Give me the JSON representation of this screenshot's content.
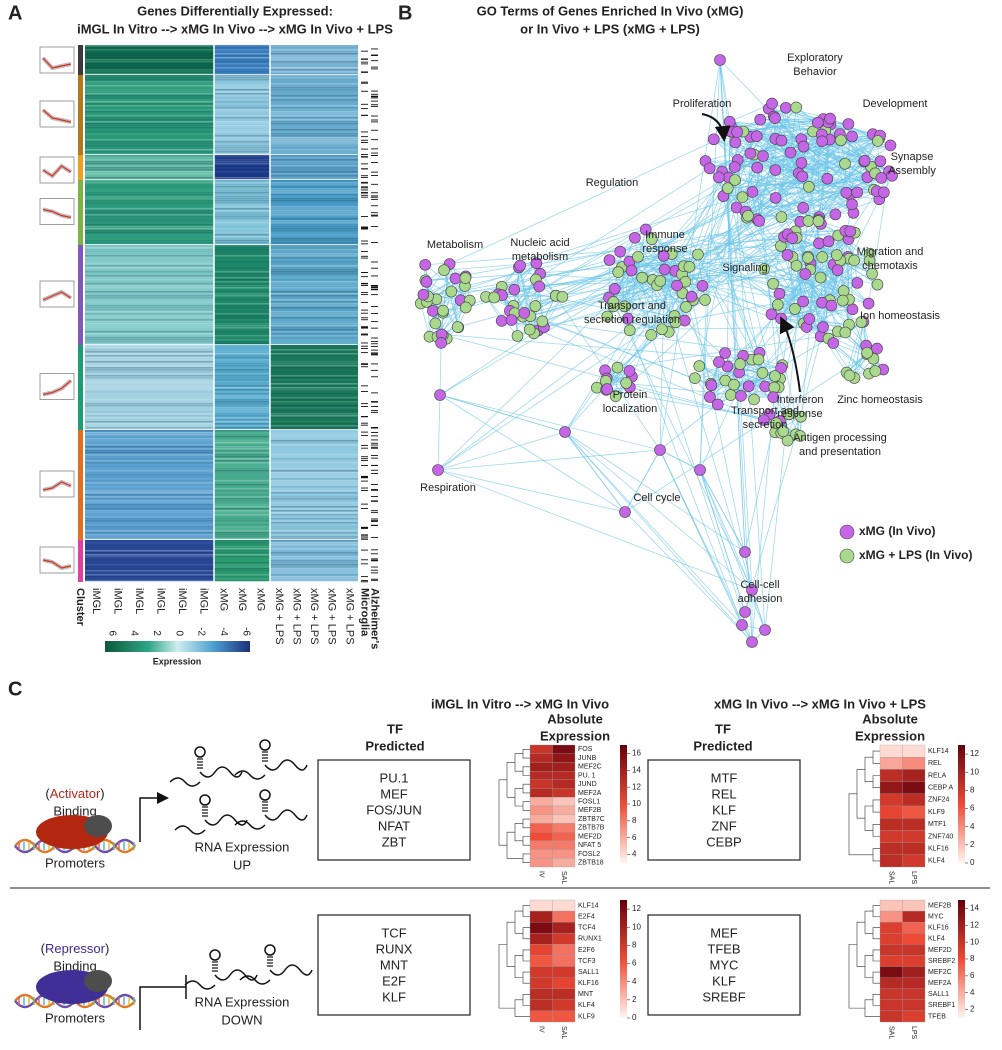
{
  "panel_labels": [
    "A",
    "B",
    "C"
  ],
  "panel_a": {
    "title_lines": [
      "Genes Differentially Expressed:",
      "iMGL In Vitro --> xMG In Vivo --> xMG In Vivo + LPS"
    ],
    "cluster_label": "Cluster",
    "columns": [
      "iMGL",
      "iMGL",
      "iMGL",
      "iMGL",
      "iMGL",
      "iMGL",
      "xMG",
      "xMG",
      "xMG",
      "xMG + LPS",
      "xMG + LPS",
      "xMG + LPS",
      "xMG + LPS",
      "xMG + LPS",
      "Microglia",
      "Alzheimer's"
    ],
    "colorbar": {
      "label": "Expression",
      "ticks": [
        6,
        4,
        2,
        0,
        -2,
        -4,
        -6
      ]
    }
  },
  "panel_b": {
    "title_lines": [
      "GO Terms of Genes Enriched In Vivo (xMG)",
      "or In Vivo + LPS (xMG + LPS)"
    ],
    "labels": [
      {
        "lines": [
          "Exploratory",
          "Behavior"
        ]
      },
      {
        "lines": [
          "Proliferation"
        ]
      },
      {
        "lines": [
          "Development"
        ]
      },
      {
        "lines": [
          "Synapse",
          "Assembly"
        ]
      },
      {
        "lines": [
          "Regulation"
        ]
      },
      {
        "lines": [
          "Metabolism"
        ]
      },
      {
        "lines": [
          "Nucleic acid",
          "metabolism"
        ]
      },
      {
        "lines": [
          "Immune",
          "response"
        ]
      },
      {
        "lines": [
          "Signaling"
        ]
      },
      {
        "lines": [
          "Migration and",
          "chemotaxis"
        ]
      },
      {
        "lines": [
          "Transport and",
          "secretion regulation"
        ]
      },
      {
        "lines": [
          "Ion homeostasis"
        ]
      },
      {
        "lines": [
          "Protein",
          "localization"
        ]
      },
      {
        "lines": [
          "Interferon",
          "response"
        ]
      },
      {
        "lines": [
          "Zinc homeostasis"
        ]
      },
      {
        "lines": [
          "Transport and",
          "secretion"
        ]
      },
      {
        "lines": [
          "Antigen processing",
          "and presentation"
        ]
      },
      {
        "lines": [
          "Respiration"
        ]
      },
      {
        "lines": [
          "Cell cycle"
        ]
      },
      {
        "lines": [
          "Cell-cell",
          "adhesion"
        ]
      }
    ],
    "legend": [
      {
        "name": "xMG (In Vivo)",
        "color": "#c466e6"
      },
      {
        "name": "xMG + LPS  (In Vivo)",
        "color": "#a9d98c"
      }
    ]
  },
  "panel_c": {
    "columns": [
      {
        "title": "iMGL In Vitro --> xMG In Vivo",
        "tf_header": [
          "TF",
          "Predicted"
        ],
        "expr_header": [
          "Absolute",
          "Expression"
        ]
      },
      {
        "title": "xMG In Vivo --> xMG In Vivo + LPS",
        "tf_header": [
          "TF",
          "Predicted"
        ],
        "expr_header": [
          "Absolute",
          "Expression"
        ]
      }
    ],
    "rows": [
      {
        "mode": [
          {
            "text": "(",
            "color": "#222222"
          },
          {
            "text": "Activator",
            "color": "#b8261a"
          },
          {
            "text": ")",
            "color": "#222222"
          }
        ],
        "binding": "Binding",
        "promoters": "Promoters",
        "rna": "RNA Expression",
        "direction": {
          "text": "UP",
          "color": "#e0301e"
        },
        "blob_color": "#b3260f",
        "panels": [
          {
            "tfs": [
              "PU.1",
              "MEF",
              "FOS/JUN",
              "NFAT",
              "ZBT"
            ],
            "heatmap": {
              "columns": [
                "IV",
                "SAL"
              ],
              "ticks": [
                16,
                14,
                12,
                10,
                8,
                6,
                4
              ],
              "clim": [
                3,
                17
              ],
              "genes": [
                {
                  "name": "FOS",
                  "color": "#e8412c",
                  "values": [
                    12,
                    16
                  ]
                },
                {
                  "name": "JUNB",
                  "color": "#e8412c",
                  "values": [
                    13,
                    15
                  ]
                },
                {
                  "name": "MEF2C",
                  "color": "#e8412c",
                  "values": [
                    14,
                    14
                  ]
                },
                {
                  "name": "PU. 1",
                  "color": "#222222",
                  "values": [
                    13,
                    13
                  ]
                },
                {
                  "name": "JUND",
                  "color": "#e8412c",
                  "values": [
                    12,
                    13
                  ]
                },
                {
                  "name": "MEF2A",
                  "color": "#e8412c",
                  "values": [
                    13,
                    12
                  ]
                },
                {
                  "name": "FOSL1",
                  "color": "#222222",
                  "values": [
                    6,
                    5
                  ]
                },
                {
                  "name": "MEF2B",
                  "color": "#e8412c",
                  "values": [
                    7,
                    6
                  ]
                },
                {
                  "name": "ZBTB7C",
                  "color": "#222222",
                  "values": [
                    6,
                    5
                  ]
                },
                {
                  "name": "ZBTB7B",
                  "color": "#222222",
                  "values": [
                    9,
                    8
                  ]
                },
                {
                  "name": "MEF2D",
                  "color": "#e8412c",
                  "values": [
                    10,
                    9
                  ]
                },
                {
                  "name": "NFAT 5",
                  "color": "#222222",
                  "values": [
                    8,
                    8
                  ]
                },
                {
                  "name": "FOSL2",
                  "color": "#e8412c",
                  "values": [
                    7,
                    7
                  ]
                },
                {
                  "name": "ZBTB18",
                  "color": "#222222",
                  "values": [
                    7,
                    6
                  ]
                }
              ]
            }
          },
          {
            "tfs": [
              "MTF",
              "REL",
              "KLF",
              "ZNF",
              "CEBP"
            ],
            "heatmap": {
              "columns": [
                "SAL",
                "LPS"
              ],
              "ticks": [
                12,
                10,
                8,
                6,
                4,
                2,
                0
              ],
              "clim": [
                0,
                13
              ],
              "genes": [
                {
                  "name": "KLF14",
                  "color": "#222222",
                  "values": [
                    1,
                    1
                  ]
                },
                {
                  "name": "REL",
                  "color": "#222222",
                  "values": [
                    3,
                    4
                  ]
                },
                {
                  "name": "RELA",
                  "color": "#e8412c",
                  "values": [
                    9,
                    10
                  ]
                },
                {
                  "name": "CEBP A",
                  "color": "#e8412c",
                  "values": [
                    11,
                    12
                  ]
                },
                {
                  "name": "ZNF24",
                  "color": "#222222",
                  "values": [
                    8,
                    9
                  ]
                },
                {
                  "name": "KLF9",
                  "color": "#222222",
                  "values": [
                    7,
                    6
                  ]
                },
                {
                  "name": "MTF1",
                  "color": "#222222",
                  "values": [
                    9,
                    9
                  ]
                },
                {
                  "name": "ZNF740",
                  "color": "#222222",
                  "values": [
                    8,
                    8
                  ]
                },
                {
                  "name": "KLF16",
                  "color": "#222222",
                  "values": [
                    9,
                    9
                  ]
                },
                {
                  "name": "KLF4",
                  "color": "#e8412c",
                  "values": [
                    9,
                    8
                  ]
                }
              ]
            }
          }
        ]
      },
      {
        "mode": [
          {
            "text": "(",
            "color": "#222222"
          },
          {
            "text": "Repressor",
            "color": "#3b2a9a"
          },
          {
            "text": ")",
            "color": "#222222"
          }
        ],
        "binding": "Binding",
        "promoters": "Promoters",
        "rna": "RNA Expression",
        "direction": {
          "text": "DOWN",
          "color": "#3b2a9a"
        },
        "blob_color": "#3f2f96",
        "panels": [
          {
            "tfs": [
              "TCF",
              "RUNX",
              "MNT",
              "E2F",
              "KLF"
            ],
            "heatmap": {
              "columns": [
                "IV",
                "SAL"
              ],
              "ticks": [
                12,
                10,
                8,
                6,
                4,
                2,
                0
              ],
              "clim": [
                0,
                13
              ],
              "genes": [
                {
                  "name": "KLF14",
                  "color": "#222222",
                  "values": [
                    1,
                    1
                  ]
                },
                {
                  "name": "E2F4",
                  "color": "#222222",
                  "values": [
                    10,
                    5
                  ]
                },
                {
                  "name": "TCF4",
                  "color": "#e8412c",
                  "values": [
                    12,
                    10
                  ]
                },
                {
                  "name": "RUNX1",
                  "color": "#e8412c",
                  "values": [
                    10,
                    8
                  ]
                },
                {
                  "name": "E2F6",
                  "color": "#222222",
                  "values": [
                    7,
                    5
                  ]
                },
                {
                  "name": "TCF3",
                  "color": "#222222",
                  "values": [
                    6,
                    5
                  ]
                },
                {
                  "name": "SALL1",
                  "color": "#e8412c",
                  "values": [
                    8,
                    8
                  ]
                },
                {
                  "name": "KLF16",
                  "color": "#222222",
                  "values": [
                    8,
                    7
                  ]
                },
                {
                  "name": "MNT",
                  "color": "#e8412c",
                  "values": [
                    9,
                    9
                  ]
                },
                {
                  "name": "KLF4",
                  "color": "#e8412c",
                  "values": [
                    9,
                    8
                  ]
                },
                {
                  "name": "KLF9",
                  "color": "#222222",
                  "values": [
                    6,
                    6
                  ]
                }
              ]
            }
          },
          {
            "tfs": [
              "MEF",
              "TFEB",
              "MYC",
              "KLF",
              "SREBF"
            ],
            "heatmap": {
              "columns": [
                "SAL",
                "LPS"
              ],
              "ticks": [
                14,
                12,
                10,
                8,
                6,
                4,
                2
              ],
              "clim": [
                1,
                15
              ],
              "genes": [
                {
                  "name": "MEF2B",
                  "color": "#e8412c",
                  "values": [
                    3,
                    3
                  ]
                },
                {
                  "name": "MYC",
                  "color": "#222222",
                  "values": [
                    5,
                    11
                  ]
                },
                {
                  "name": "KLF16",
                  "color": "#222222",
                  "values": [
                    9,
                    7
                  ]
                },
                {
                  "name": "KLF4",
                  "color": "#e8412c",
                  "values": [
                    9,
                    8
                  ]
                },
                {
                  "name": "MEF2D",
                  "color": "#e8412c",
                  "values": [
                    10,
                    10
                  ]
                },
                {
                  "name": "SREBF2",
                  "color": "#222222",
                  "values": [
                    9,
                    9
                  ]
                },
                {
                  "name": "MEF2C",
                  "color": "#e8412c",
                  "values": [
                    14,
                    12
                  ]
                },
                {
                  "name": "MEF2A",
                  "color": "#e8412c",
                  "values": [
                    11,
                    11
                  ]
                },
                {
                  "name": "SALL1",
                  "color": "#e8412c",
                  "values": [
                    10,
                    10
                  ]
                },
                {
                  "name": "SREBF1",
                  "color": "#222222",
                  "values": [
                    10,
                    10
                  ]
                },
                {
                  "name": "TFEB",
                  "color": "#e8412c",
                  "values": [
                    10,
                    9
                  ]
                }
              ]
            }
          }
        ]
      }
    ]
  }
}
